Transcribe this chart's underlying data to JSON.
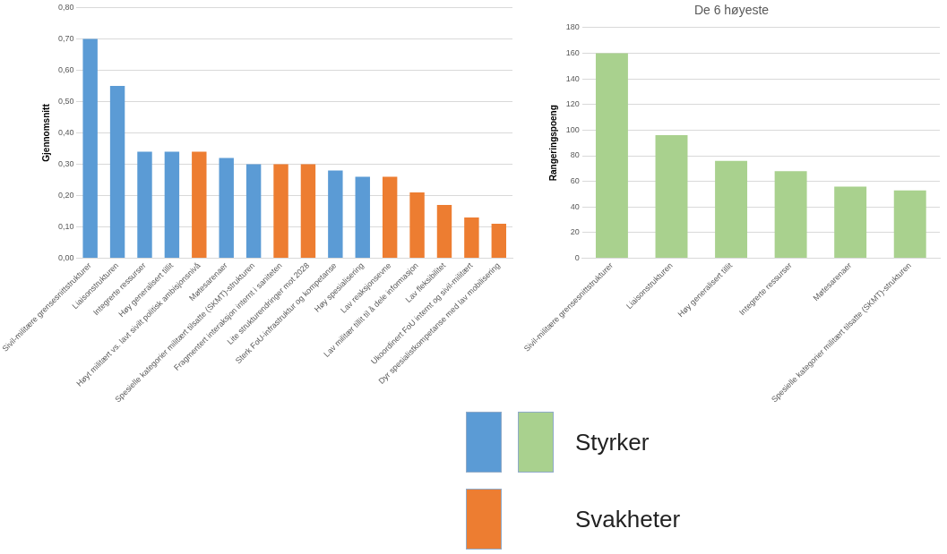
{
  "chart_data": [
    {
      "type": "bar",
      "ylabel": "Gjennomsnitt",
      "categories": [
        "Sivil-militære grensesnittstrukturer",
        "Liaisonstrukturen",
        "Integrerte ressurser",
        "Høy generalisert tillit",
        "Høyt militært vs. lavt sivilt politisk ambisjonsnivå",
        "Møtesarenaer",
        "Spesielle kategorier militært tilsatte (SKMT)-strukturen",
        "Fragmentert interaksjon internt i saniteten",
        "Lite strukturendringer mot 2028",
        "Sterk FoU-infrastruktur og kompetanse",
        "Høy spesialisering",
        "Lav reaksjonsevne",
        "Lav militær tillit til å dele informasjon",
        "Lav fleksibilitet",
        "Ukoordinert FoU internt og sivil-militært",
        "Dyr spesialistkompetanse med lav mobilisering"
      ],
      "series": [
        {
          "name": "Styrker",
          "color": "#5b9bd5",
          "values": [
            0.7,
            0.55,
            0.34,
            0.34,
            null,
            0.32,
            0.3,
            null,
            null,
            0.28,
            0.26,
            null,
            null,
            null,
            null,
            null
          ]
        },
        {
          "name": "Svakheter",
          "color": "#ed7d31",
          "values": [
            null,
            null,
            null,
            null,
            0.34,
            null,
            null,
            0.3,
            0.3,
            null,
            null,
            0.26,
            0.21,
            0.17,
            0.13,
            0.11
          ]
        }
      ],
      "ylim": [
        0,
        0.8
      ],
      "yticks": [
        {
          "value": 0,
          "label": "0,00"
        },
        {
          "value": 0.1,
          "label": "0,10"
        },
        {
          "value": 0.2,
          "label": "0,20"
        },
        {
          "value": 0.3,
          "label": "0,30"
        },
        {
          "value": 0.4,
          "label": "0,40"
        },
        {
          "value": 0.5,
          "label": "0,50"
        },
        {
          "value": 0.6,
          "label": "0,60"
        },
        {
          "value": 0.7,
          "label": "0,70"
        },
        {
          "value": 0.8,
          "label": "0,80"
        }
      ],
      "grid": "y",
      "legend": "bottom"
    },
    {
      "type": "bar",
      "title": "De 6 høyeste",
      "ylabel": "Rangeringspoeng",
      "categories": [
        "Sivil-militære grensesnittstrukturer",
        "Liaisonstrukturen",
        "Høy generalisert tillit",
        "Integrerte ressurser",
        "Møtesarenaer",
        "Spesielle kategorier militært tilsatte (SKMT)-strukturen"
      ],
      "series": [
        {
          "color": "#a9d18e",
          "values": [
            160,
            96,
            76,
            68,
            56,
            53
          ]
        }
      ],
      "ylim": [
        0,
        180
      ],
      "yticks": [
        0,
        20,
        40,
        60,
        80,
        100,
        120,
        140,
        160,
        180
      ],
      "grid": "y"
    }
  ]
}
